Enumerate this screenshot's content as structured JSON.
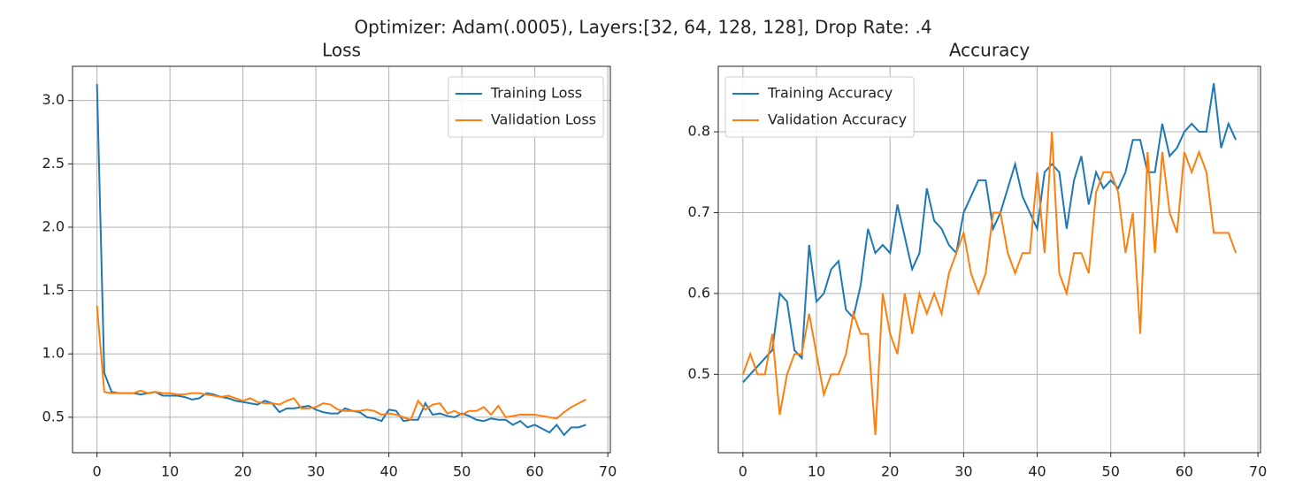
{
  "title": "Optimizer: Adam(.0005), Layers:[32, 64, 128, 128], Drop Rate: .4",
  "chart_data": [
    {
      "type": "line",
      "title": "Loss",
      "legend": "upper right",
      "grid": true,
      "xlim": [
        -3.35,
        70.35
      ],
      "ylim": [
        0.22,
        3.27
      ],
      "xticks": [
        0,
        10,
        20,
        30,
        40,
        50,
        60,
        70
      ],
      "yticks": [
        0.5,
        {
          "value": 1,
          "label": "1.0"
        },
        1.5,
        {
          "value": 2,
          "label": "2.0"
        },
        2.5,
        {
          "value": 3,
          "label": "3.0"
        }
      ],
      "x": [
        0,
        1,
        2,
        3,
        4,
        5,
        6,
        7,
        8,
        9,
        10,
        11,
        12,
        13,
        14,
        15,
        16,
        17,
        18,
        19,
        20,
        21,
        22,
        23,
        24,
        25,
        26,
        27,
        28,
        29,
        30,
        31,
        32,
        33,
        34,
        35,
        36,
        37,
        38,
        39,
        40,
        41,
        42,
        43,
        44,
        45,
        46,
        47,
        48,
        49,
        50,
        51,
        52,
        53,
        54,
        55,
        56,
        57,
        58,
        59,
        60,
        61,
        62,
        63,
        64,
        65,
        66,
        67
      ],
      "series": [
        {
          "name": "Training Loss",
          "color": "#1f77b4",
          "values": [
            3.13,
            0.85,
            0.7,
            0.69,
            0.69,
            0.69,
            0.68,
            0.69,
            0.7,
            0.67,
            0.67,
            0.67,
            0.66,
            0.64,
            0.65,
            0.69,
            0.68,
            0.66,
            0.65,
            0.63,
            0.62,
            0.61,
            0.6,
            0.63,
            0.61,
            0.54,
            0.57,
            0.57,
            0.58,
            0.59,
            0.56,
            0.54,
            0.53,
            0.53,
            0.57,
            0.55,
            0.54,
            0.5,
            0.49,
            0.47,
            0.56,
            0.55,
            0.47,
            0.48,
            0.48,
            0.61,
            0.52,
            0.53,
            0.51,
            0.5,
            0.53,
            0.51,
            0.48,
            0.47,
            0.49,
            0.48,
            0.48,
            0.44,
            0.47,
            0.42,
            0.44,
            0.41,
            0.38,
            0.44,
            0.36,
            0.42,
            0.42,
            0.44
          ]
        },
        {
          "name": "Validation Loss",
          "color": "#ff7f0e",
          "values": [
            1.38,
            0.7,
            0.69,
            0.69,
            0.69,
            0.69,
            0.71,
            0.69,
            0.7,
            0.69,
            0.69,
            0.68,
            0.68,
            0.69,
            0.69,
            0.68,
            0.67,
            0.66,
            0.67,
            0.65,
            0.63,
            0.65,
            0.62,
            0.61,
            0.61,
            0.6,
            0.63,
            0.65,
            0.57,
            0.57,
            0.58,
            0.61,
            0.6,
            0.56,
            0.55,
            0.55,
            0.55,
            0.56,
            0.55,
            0.52,
            0.53,
            0.52,
            0.5,
            0.48,
            0.63,
            0.56,
            0.6,
            0.61,
            0.53,
            0.55,
            0.52,
            0.55,
            0.55,
            0.58,
            0.52,
            0.59,
            0.5,
            0.51,
            0.52,
            0.52,
            0.52,
            0.51,
            0.5,
            0.49,
            0.54,
            0.58,
            0.61,
            0.64
          ]
        }
      ]
    },
    {
      "type": "line",
      "title": "Accuracy",
      "legend": "upper left",
      "grid": true,
      "xlim": [
        -3.35,
        70.35
      ],
      "ylim": [
        0.403,
        0.881
      ],
      "xticks": [
        0,
        10,
        20,
        30,
        40,
        50,
        60,
        70
      ],
      "yticks": [
        0.5,
        0.6,
        0.7,
        0.8
      ],
      "x": [
        0,
        1,
        2,
        3,
        4,
        5,
        6,
        7,
        8,
        9,
        10,
        11,
        12,
        13,
        14,
        15,
        16,
        17,
        18,
        19,
        20,
        21,
        22,
        23,
        24,
        25,
        26,
        27,
        28,
        29,
        30,
        31,
        32,
        33,
        34,
        35,
        36,
        37,
        38,
        39,
        40,
        41,
        42,
        43,
        44,
        45,
        46,
        47,
        48,
        49,
        50,
        51,
        52,
        53,
        54,
        55,
        56,
        57,
        58,
        59,
        60,
        61,
        62,
        63,
        64,
        65,
        66,
        67
      ],
      "series": [
        {
          "name": "Training Accuracy",
          "color": "#1f77b4",
          "values": [
            0.49,
            0.5,
            0.51,
            0.52,
            0.53,
            0.6,
            0.59,
            0.53,
            0.52,
            0.66,
            0.59,
            0.6,
            0.63,
            0.64,
            0.58,
            0.57,
            0.61,
            0.68,
            0.65,
            0.66,
            0.65,
            0.71,
            0.67,
            0.63,
            0.65,
            0.73,
            0.69,
            0.68,
            0.66,
            0.65,
            0.7,
            0.72,
            0.74,
            0.74,
            0.68,
            0.7,
            0.73,
            0.76,
            0.72,
            0.7,
            0.68,
            0.75,
            0.76,
            0.75,
            0.68,
            0.74,
            0.77,
            0.71,
            0.75,
            0.73,
            0.74,
            0.73,
            0.75,
            0.79,
            0.79,
            0.75,
            0.75,
            0.81,
            0.77,
            0.78,
            0.8,
            0.81,
            0.8,
            0.8,
            0.86,
            0.78,
            0.81,
            0.79
          ]
        },
        {
          "name": "Validation Accuracy",
          "color": "#ff7f0e",
          "values": [
            0.5,
            0.525,
            0.5,
            0.5,
            0.55,
            0.45,
            0.5,
            0.525,
            0.525,
            0.575,
            0.525,
            0.475,
            0.5,
            0.5,
            0.525,
            0.575,
            0.55,
            0.55,
            0.425,
            0.6,
            0.55,
            0.525,
            0.6,
            0.55,
            0.6,
            0.575,
            0.6,
            0.575,
            0.625,
            0.65,
            0.675,
            0.625,
            0.6,
            0.625,
            0.7,
            0.7,
            0.65,
            0.625,
            0.65,
            0.65,
            0.75,
            0.65,
            0.8,
            0.625,
            0.6,
            0.65,
            0.65,
            0.625,
            0.725,
            0.75,
            0.75,
            0.725,
            0.65,
            0.7,
            0.55,
            0.775,
            0.65,
            0.775,
            0.7,
            0.675,
            0.775,
            0.75,
            0.775,
            0.75,
            0.675,
            0.675,
            0.675,
            0.65
          ]
        }
      ]
    }
  ]
}
